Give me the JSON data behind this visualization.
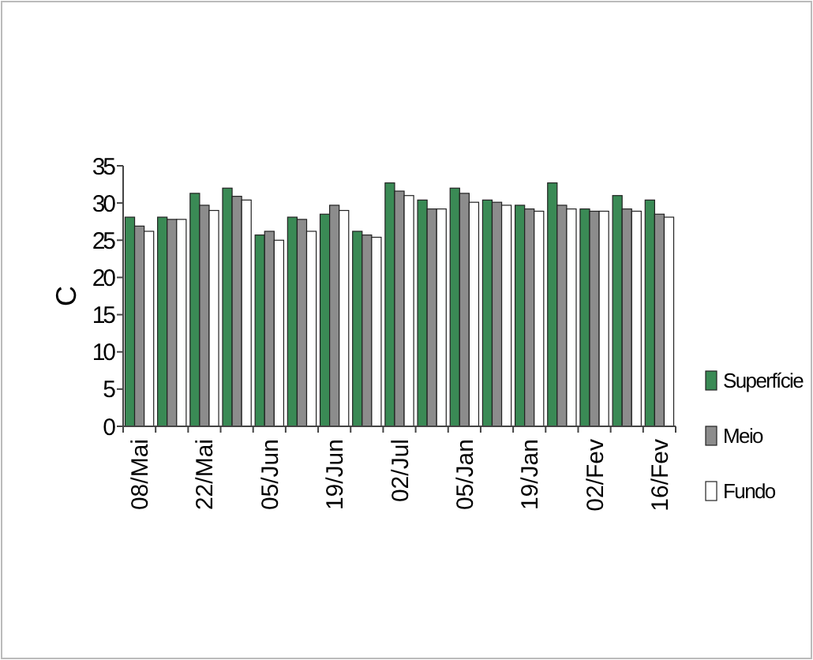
{
  "chart_data": {
    "type": "bar",
    "ylabel": "C",
    "categories": [
      "08/Mai",
      null,
      "22/Mai",
      null,
      "05/Jun",
      null,
      "19/Jun",
      null,
      "02/Jul",
      null,
      "05/Jan",
      null,
      "19/Jan",
      null,
      "02/Fev",
      null,
      "16/Fev"
    ],
    "series": [
      {
        "name": "Superfície",
        "color": "#3a8a55",
        "values": [
          28.1,
          28.1,
          31.3,
          32.0,
          25.7,
          28.1,
          28.5,
          26.2,
          32.7,
          30.4,
          32.0,
          30.4,
          29.7,
          32.7,
          29.2,
          31.0,
          30.4
        ]
      },
      {
        "name": "Meio",
        "color": "#8c8c8c",
        "values": [
          26.9,
          27.8,
          29.7,
          30.9,
          26.2,
          27.8,
          29.7,
          25.7,
          31.6,
          29.2,
          31.3,
          30.1,
          29.2,
          29.7,
          28.9,
          29.2,
          28.5
        ]
      },
      {
        "name": "Fundo",
        "color": "#ffffff",
        "values": [
          26.2,
          27.8,
          29.0,
          30.4,
          25.0,
          26.2,
          29.0,
          25.4,
          31.0,
          29.2,
          30.1,
          29.7,
          28.9,
          29.2,
          28.9,
          28.9,
          28.1
        ]
      }
    ],
    "ylim": [
      0,
      35
    ],
    "yticks": [
      0,
      5,
      10,
      15,
      20,
      25,
      30,
      35
    ],
    "grid": false,
    "legend": "right"
  }
}
